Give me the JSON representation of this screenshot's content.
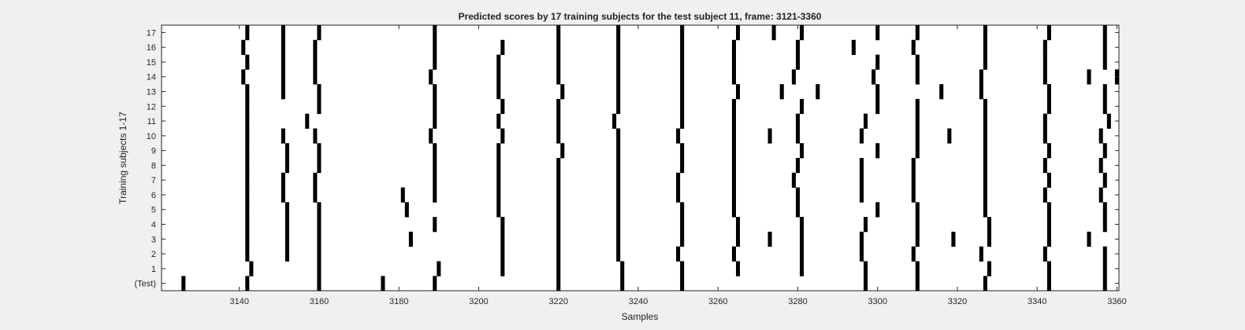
{
  "chart_data": {
    "type": "heatmap",
    "title": "Predicted scores by 17 training subjects for the test subject 11, frame: 3121-3360",
    "xlabel": "Samples",
    "ylabel": "Training subjects 1-17",
    "xlim": [
      3121,
      3360
    ],
    "xticks": [
      3140,
      3160,
      3180,
      3200,
      3220,
      3240,
      3260,
      3280,
      3300,
      3320,
      3340,
      3360
    ],
    "row_labels": [
      "(Test)",
      "1",
      "2",
      "3",
      "4",
      "5",
      "6",
      "7",
      "8",
      "9",
      "10",
      "11",
      "12",
      "13",
      "14",
      "15",
      "16",
      "17"
    ],
    "colors": {
      "mark": "#000000",
      "background": "#ffffff",
      "figure": "#f0f0f0"
    },
    "grid": false,
    "rows": [
      {
        "label": "(Test)",
        "positions": [
          3126,
          3142,
          3160,
          3176,
          3189,
          3220,
          3236,
          3251,
          3297,
          3310,
          3327,
          3343,
          3357
        ]
      },
      {
        "label": "1",
        "positions": [
          3143,
          3160,
          3190,
          3206,
          3220,
          3236,
          3251,
          3265,
          3281,
          3297,
          3310,
          3328,
          3343,
          3357
        ]
      },
      {
        "label": "2",
        "positions": [
          3142,
          3152,
          3160,
          3206,
          3220,
          3235,
          3250,
          3264,
          3281,
          3296,
          3309,
          3326,
          3342,
          3357
        ]
      },
      {
        "label": "3",
        "positions": [
          3142,
          3152,
          3160,
          3183,
          3206,
          3220,
          3235,
          3251,
          3265,
          3273,
          3281,
          3296,
          3310,
          3319,
          3328,
          3343,
          3353
        ]
      },
      {
        "label": "4",
        "positions": [
          3142,
          3152,
          3160,
          3189,
          3206,
          3220,
          3235,
          3251,
          3265,
          3281,
          3297,
          3310,
          3328,
          3343,
          3357
        ]
      },
      {
        "label": "5",
        "positions": [
          3142,
          3152,
          3160,
          3182,
          3205,
          3220,
          3235,
          3251,
          3264,
          3280,
          3300,
          3310,
          3327,
          3343,
          3357
        ]
      },
      {
        "label": "6",
        "positions": [
          3142,
          3151,
          3159,
          3181,
          3189,
          3205,
          3220,
          3235,
          3250,
          3264,
          3280,
          3296,
          3309,
          3327,
          3342,
          3356
        ]
      },
      {
        "label": "7",
        "positions": [
          3142,
          3151,
          3159,
          3189,
          3205,
          3220,
          3235,
          3250,
          3264,
          3279,
          3296,
          3309,
          3327,
          3343,
          3357
        ]
      },
      {
        "label": "8",
        "positions": [
          3142,
          3152,
          3160,
          3189,
          3205,
          3220,
          3235,
          3251,
          3264,
          3280,
          3296,
          3309,
          3327,
          3342,
          3356
        ]
      },
      {
        "label": "9",
        "positions": [
          3142,
          3152,
          3160,
          3189,
          3205,
          3221,
          3235,
          3251,
          3264,
          3281,
          3300,
          3310,
          3327,
          3343,
          3357
        ]
      },
      {
        "label": "10",
        "positions": [
          3142,
          3151,
          3159,
          3188,
          3206,
          3220,
          3235,
          3250,
          3264,
          3273,
          3280,
          3296,
          3310,
          3318,
          3327,
          3342,
          3356
        ]
      },
      {
        "label": "11",
        "positions": [
          3142,
          3157,
          3189,
          3205,
          3220,
          3234,
          3251,
          3264,
          3280,
          3297,
          3310,
          3327,
          3342,
          3358
        ]
      },
      {
        "label": "12",
        "positions": [
          3142,
          3160,
          3189,
          3206,
          3220,
          3235,
          3251,
          3264,
          3281,
          3300,
          3310,
          3327,
          3343,
          3357
        ]
      },
      {
        "label": "13",
        "positions": [
          3142,
          3151,
          3160,
          3189,
          3205,
          3221,
          3235,
          3251,
          3265,
          3276,
          3285,
          3300,
          3316,
          3326,
          3343,
          3357
        ]
      },
      {
        "label": "14",
        "positions": [
          3141,
          3151,
          3159,
          3188,
          3205,
          3220,
          3235,
          3251,
          3264,
          3279,
          3299,
          3310,
          3326,
          3342,
          3353,
          3360
        ]
      },
      {
        "label": "15",
        "positions": [
          3142,
          3151,
          3159,
          3189,
          3205,
          3220,
          3235,
          3251,
          3264,
          3280,
          3300,
          3310,
          3327,
          3342,
          3357
        ]
      },
      {
        "label": "16",
        "positions": [
          3141,
          3151,
          3159,
          3189,
          3206,
          3220,
          3235,
          3251,
          3264,
          3280,
          3294,
          3309,
          3327,
          3342,
          3357
        ]
      },
      {
        "label": "17",
        "positions": [
          3142,
          3151,
          3160,
          3189,
          3220,
          3235,
          3251,
          3265,
          3274,
          3281,
          3300,
          3310,
          3327,
          3343,
          3357
        ]
      }
    ]
  }
}
